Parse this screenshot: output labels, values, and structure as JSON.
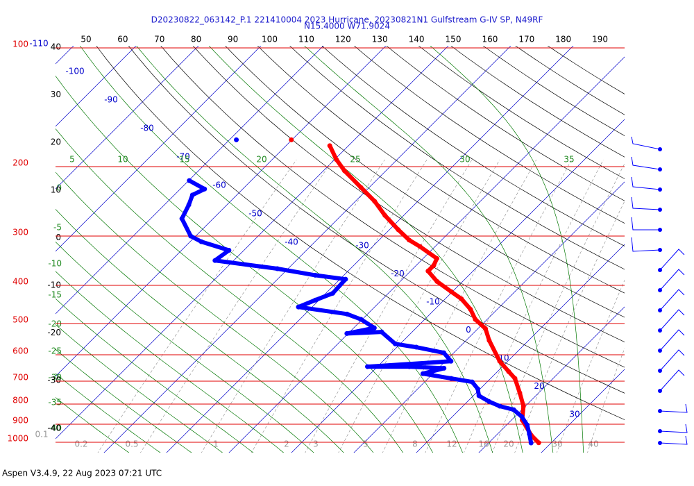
{
  "chart_data": {
    "type": "skewt",
    "title": [
      "D20230822_063142_P.1 221410004 2023 Hurricane, 20230821N1 Gulfstream G-IV SP, N49RF",
      "N15.4000 W71.9024"
    ],
    "footer": "Aspen V3.4.9, 22 Aug 2023  07:21 UTC",
    "ylim": [
      1000,
      100
    ],
    "log_y": true,
    "yticks": [
      100,
      200,
      300,
      400,
      500,
      600,
      700,
      800,
      900,
      1000
    ],
    "isotherms": [
      -110,
      -100,
      -90,
      -80,
      -70,
      -60,
      -50,
      -40,
      -30,
      -20,
      -10,
      0,
      10,
      20,
      30
    ],
    "dry_adiabats": [
      50,
      60,
      70,
      80,
      90,
      100,
      110,
      120,
      130,
      140,
      150,
      160,
      170,
      180,
      190
    ],
    "left_labels": [
      40,
      30,
      20,
      10,
      0,
      -10,
      -20,
      -30,
      -40
    ],
    "pseudo_adiabats_top": [
      5,
      10,
      15,
      20,
      25,
      30,
      35
    ],
    "pseudo_adiabats_left": [
      0,
      -5,
      -10,
      -15,
      -20,
      -25,
      -30,
      -35,
      -40
    ],
    "mixing_ratios": [
      0.1,
      0.2,
      0.5,
      1,
      2,
      3,
      5,
      8,
      12,
      16,
      20,
      30,
      40
    ],
    "series": [
      {
        "color": "#ff0000",
        "pressure": [
          1003,
          960,
          878,
          810,
          750,
          689,
          662,
          623,
          552,
          515,
          488,
          460,
          433,
          415,
          391,
          368,
          356,
          342,
          319,
          307,
          289,
          266,
          245,
          226,
          205,
          192,
          177
        ],
        "temperature": [
          28.0,
          25.6,
          21.7,
          19.7,
          17.0,
          13.9,
          11.8,
          8.7,
          3.7,
          1.2,
          -1.9,
          -4.3,
          -7.4,
          -10.2,
          -14.1,
          -17.2,
          -17.2,
          -17.8,
          -22.4,
          -25.2,
          -28.6,
          -33.0,
          -36.9,
          -41.3,
          -46.6,
          -49.7,
          -53.0
        ]
      },
      {
        "color": "#0000ff",
        "pressure": [
          1004,
          953,
          904,
          861,
          827,
          810,
          788,
          762,
          732,
          703,
          689,
          670,
          649,
          643,
          643,
          623,
          593,
          574,
          563,
          525,
          530,
          513,
          488,
          473,
          454,
          436,
          419,
          386,
          377,
          363,
          346,
          326,
          310,
          300,
          271,
          250,
          236,
          228,
          217
        ],
        "temperature": [
          26.8,
          25.1,
          23.3,
          21.1,
          18.7,
          15.9,
          13.4,
          10.9,
          9.6,
          7.6,
          3.7,
          -1.6,
          0.9,
          -4.9,
          -11.6,
          0.9,
          -1.6,
          -6.9,
          -10.8,
          -14.9,
          -20.2,
          -16.7,
          -20.2,
          -23.3,
          -32.2,
          -30.6,
          -28.9,
          -29.1,
          -34.6,
          -41.7,
          -53.0,
          -52.4,
          -58.2,
          -60.8,
          -65.0,
          -66.1,
          -67.1,
          -66.1,
          -69.9
        ]
      },
      {
        "color": "#ff0000",
        "pressure": [
          171
        ],
        "temperature": [
          -60.1
        ]
      },
      {
        "color": "#0000ff",
        "pressure": [
          171
        ],
        "temperature": [
          -68.9
        ]
      }
    ]
  }
}
